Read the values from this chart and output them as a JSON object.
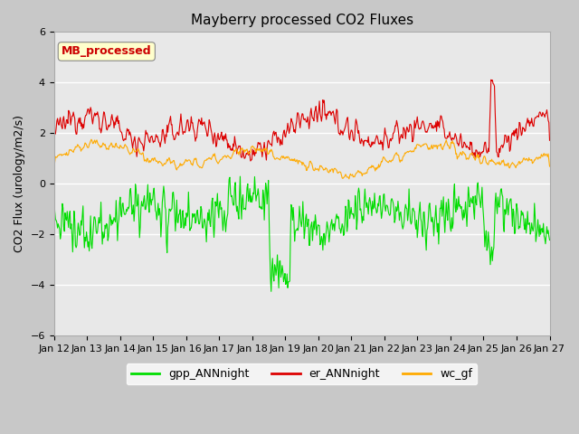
{
  "title": "Mayberry processed CO2 Fluxes",
  "ylabel": "CO2 Flux (urology/m2/s)",
  "ylim": [
    -6,
    6
  ],
  "yticks": [
    -6,
    -4,
    -2,
    0,
    2,
    4,
    6
  ],
  "n_days": 15,
  "start_day": 12,
  "points_per_day": 48,
  "colors": {
    "gpp_ANNnight": "#00dd00",
    "er_ANNnight": "#dd0000",
    "wc_gf": "#ffaa00"
  },
  "legend_labels": [
    "gpp_ANNnight",
    "er_ANNnight",
    "wc_gf"
  ],
  "inset_label": "MB_processed",
  "inset_label_color": "#cc0000",
  "inset_bg_color": "#ffffcc",
  "plot_bg_color": "#e8e8e8",
  "fig_bg_color": "#c8c8c8",
  "title_fontsize": 11,
  "axis_fontsize": 9,
  "tick_fontsize": 8
}
